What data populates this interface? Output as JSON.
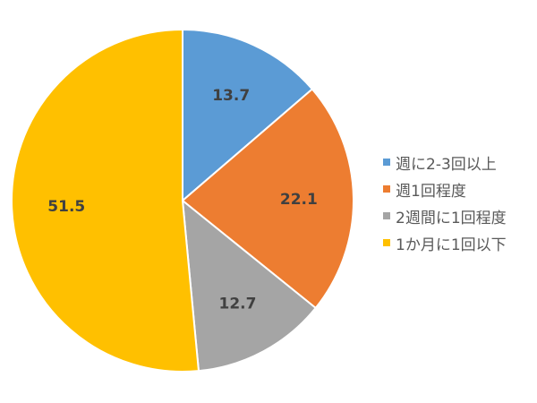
{
  "chart_data": {
    "type": "pie",
    "categories": [
      "週に2-3回以上",
      "週1回程度",
      "2週間に1回程度",
      "1か月に1回以下"
    ],
    "values": [
      13.7,
      22.1,
      12.7,
      51.5
    ],
    "colors": [
      "#5b9bd5",
      "#ed7d31",
      "#a5a5a5",
      "#ffc000"
    ],
    "data_labels": [
      "13.7",
      "22.1",
      "12.7",
      "51.5"
    ],
    "start": "top",
    "direction": "clockwise",
    "legend_position": "right"
  }
}
